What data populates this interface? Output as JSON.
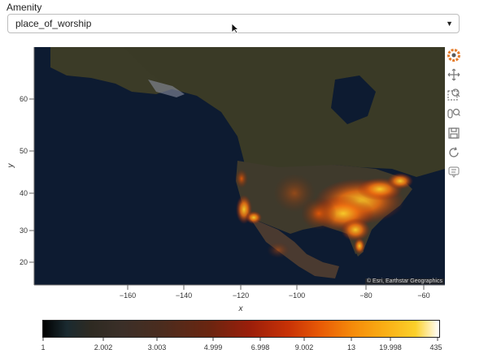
{
  "widget": {
    "label": "Amenity",
    "selected": "place_of_worship"
  },
  "map": {
    "attribution": "© Esri, Earthstar Geographics",
    "x_axis": {
      "title": "x",
      "ticks": [
        "−160",
        "−140",
        "−120",
        "−100",
        "−80",
        "−60"
      ]
    },
    "y_axis": {
      "title": "y",
      "ticks": [
        "60",
        "50",
        "40",
        "30",
        "20"
      ]
    }
  },
  "toolbar": {
    "tools": [
      "bokeh-logo-icon",
      "pan-icon",
      "box-zoom-icon",
      "wheel-zoom-icon",
      "save-icon",
      "reset-icon",
      "hover-icon"
    ]
  },
  "colorbar": {
    "ticks": [
      "1",
      "2.002",
      "3.003",
      "4.999",
      "6.998",
      "9.002",
      "13",
      "19.998",
      "435"
    ]
  },
  "colors": {
    "low": "#000000",
    "mid": "#c83206",
    "high": "#fbd02a"
  }
}
